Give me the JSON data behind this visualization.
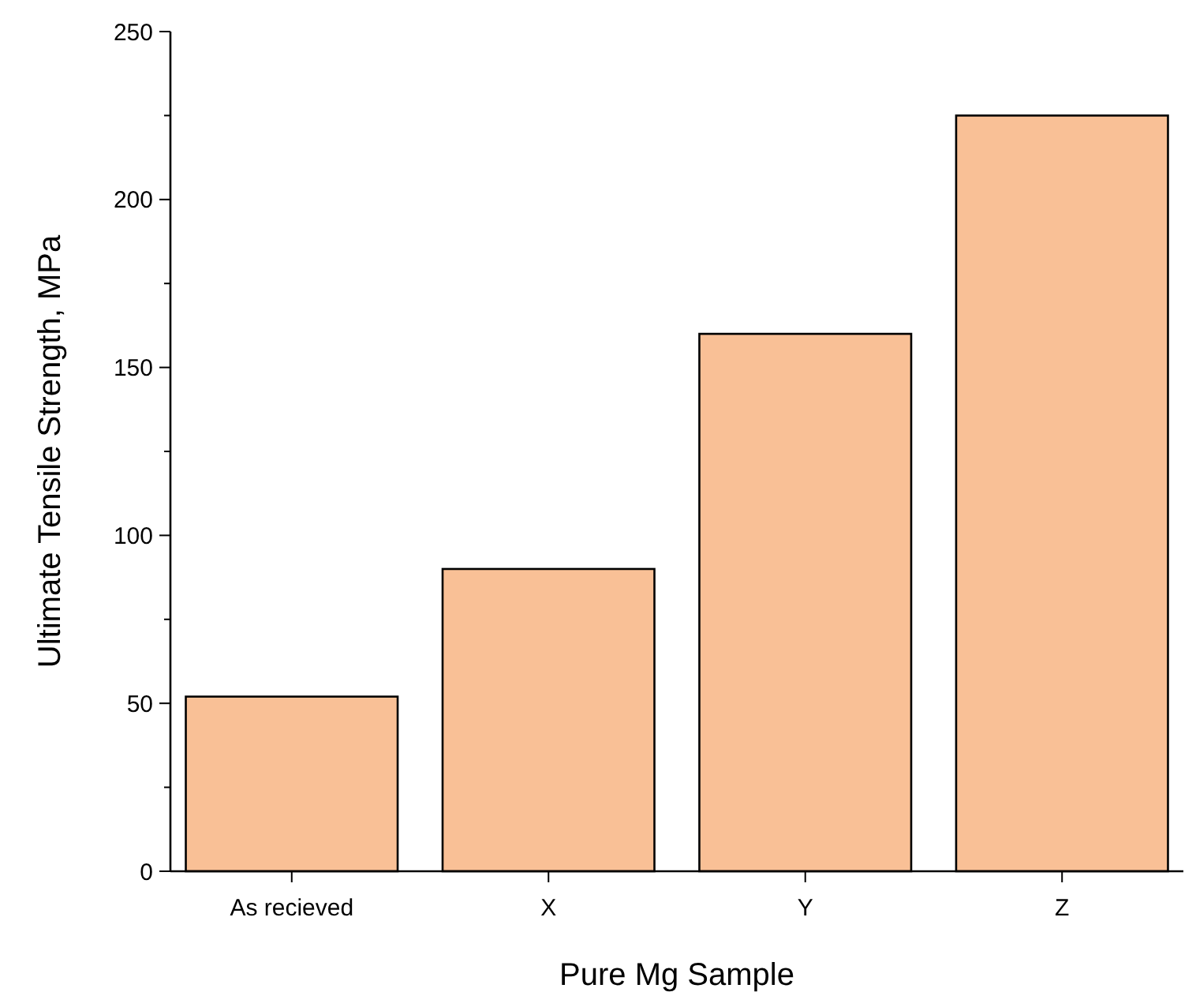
{
  "chart_data": {
    "type": "bar",
    "xlabel": "Pure Mg Sample",
    "ylabel": "Ultimate Tensile Strength, MPa",
    "categories": [
      "As recieved",
      "X",
      "Y",
      "Z"
    ],
    "values": [
      52,
      90,
      160,
      225
    ],
    "color": "#f9c096",
    "ylim": [
      0,
      250
    ],
    "yticks": [
      0,
      {
        "value": 25,
        "label": null
      },
      50,
      {
        "value": 75,
        "label": null
      },
      100,
      {
        "value": 125,
        "label": null
      },
      150,
      {
        "value": 175,
        "label": null
      },
      200,
      {
        "value": 225,
        "label": null
      },
      250
    ],
    "grid": false
  }
}
